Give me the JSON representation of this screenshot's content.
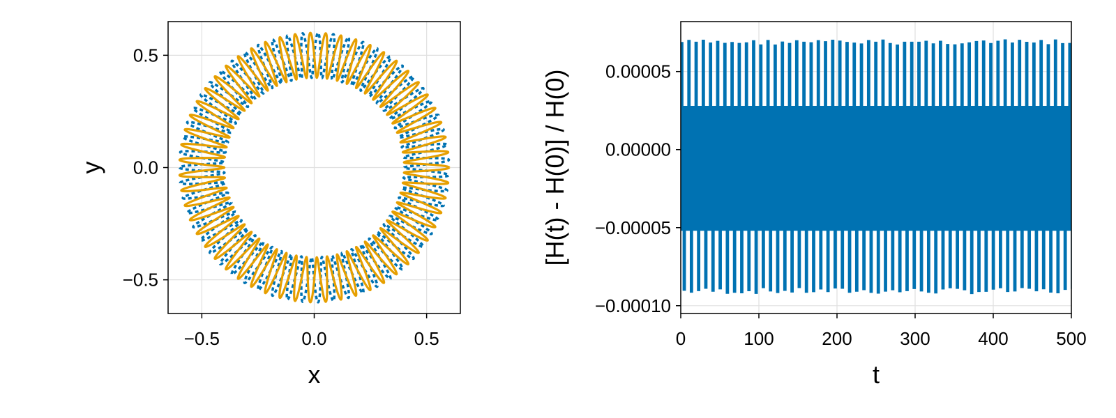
{
  "chart_data": [
    {
      "type": "line",
      "subtype": "orbit-trajectory",
      "title": "",
      "xlabel": "x",
      "ylabel": "y",
      "xlim": [
        -0.65,
        0.65
      ],
      "ylim": [
        -0.65,
        0.65
      ],
      "xticks": [
        -0.5,
        0.0,
        0.5
      ],
      "xtick_labels": [
        "−0.5",
        "0.0",
        "0.5"
      ],
      "yticks": [
        -0.5,
        0.0,
        0.5
      ],
      "ytick_labels": [
        "−0.5",
        "0.0",
        "0.5"
      ],
      "grid": true,
      "legend": "none",
      "series": [
        {
          "color": "#0072b2",
          "style": "dashed",
          "inner_radius": 0.4,
          "outer_radius": 0.6,
          "loops": 55
        },
        {
          "color": "#e69f00",
          "style": "solid",
          "inner_radius": 0.4,
          "outer_radius": 0.6,
          "loops": 55
        }
      ]
    },
    {
      "type": "line",
      "title": "",
      "xlabel": "t",
      "ylabel": "[H(t) - H(0)] / H(0)",
      "xlim": [
        0,
        500
      ],
      "ylim": [
        -0.000105,
        8.2e-05
      ],
      "xticks": [
        0,
        100,
        200,
        300,
        400,
        500
      ],
      "xtick_labels": [
        "0",
        "100",
        "200",
        "300",
        "400",
        "500"
      ],
      "yticks": [
        5e-05,
        0.0,
        -5e-05,
        -0.0001
      ],
      "ytick_labels": [
        "0.00005",
        "0.00000",
        "−0.00005",
        "−0.00010"
      ],
      "grid": true,
      "legend": "none",
      "series": [
        {
          "color": "#0072b2",
          "band_top": 2.8e-05,
          "band_bottom": -5.2e-05,
          "spike_max": 7e-05,
          "spike_min": -9.2e-05,
          "spike_period": 9.2
        }
      ]
    }
  ]
}
